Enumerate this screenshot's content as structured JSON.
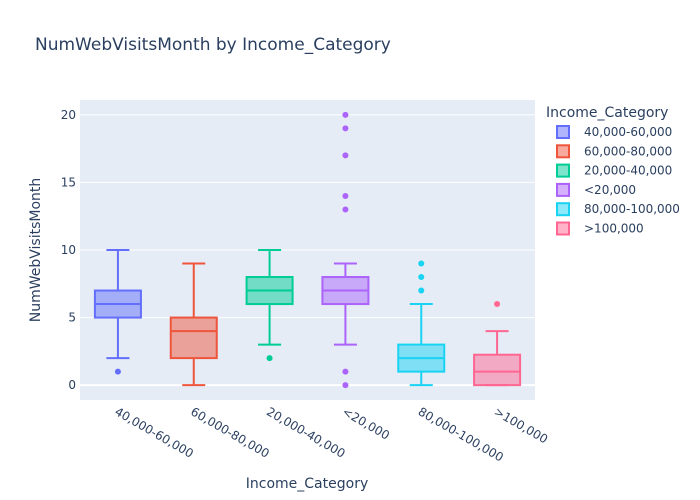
{
  "chart_data": {
    "type": "box",
    "title": "NumWebVisitsMonth by Income_Category",
    "xlabel": "Income_Category",
    "ylabel": "NumWebVisitsMonth",
    "ylim": [
      -1.1,
      21.1
    ],
    "yticks": [
      0,
      5,
      10,
      15,
      20
    ],
    "grid": true,
    "legend": {
      "title": "Income_Category",
      "placement": "right"
    },
    "categories": [
      "40,000-60,000",
      "60,000-80,000",
      "20,000-40,000",
      "<20,000",
      "80,000-100,000",
      ">100,000"
    ],
    "series": [
      {
        "name": "40,000-60,000",
        "color": "#636efa",
        "min": 2,
        "q1": 5,
        "median": 6,
        "q3": 7,
        "max": 10,
        "outliers": [
          1
        ]
      },
      {
        "name": "60,000-80,000",
        "color": "#EF553B",
        "min": 0,
        "q1": 2,
        "median": 4,
        "q3": 5,
        "max": 9,
        "outliers": []
      },
      {
        "name": "20,000-40,000",
        "color": "#00cc96",
        "min": 3,
        "q1": 6,
        "median": 7,
        "q3": 8,
        "max": 10,
        "outliers": [
          2
        ]
      },
      {
        "name": "<20,000",
        "color": "#ab63fa",
        "min": 3,
        "q1": 6,
        "median": 7,
        "q3": 8,
        "max": 9,
        "outliers": [
          0,
          1,
          13,
          14,
          17,
          19,
          20
        ]
      },
      {
        "name": "80,000-100,000",
        "color": "#19d3f3",
        "min": 0,
        "q1": 1,
        "median": 2,
        "q3": 3,
        "max": 6,
        "outliers": [
          7,
          8,
          9
        ]
      },
      {
        "name": ">100,000",
        "color": "#FF6692",
        "min": 0,
        "q1": 0,
        "median": 1,
        "q3": 2.25,
        "max": 4,
        "outliers": [
          6
        ]
      }
    ]
  }
}
